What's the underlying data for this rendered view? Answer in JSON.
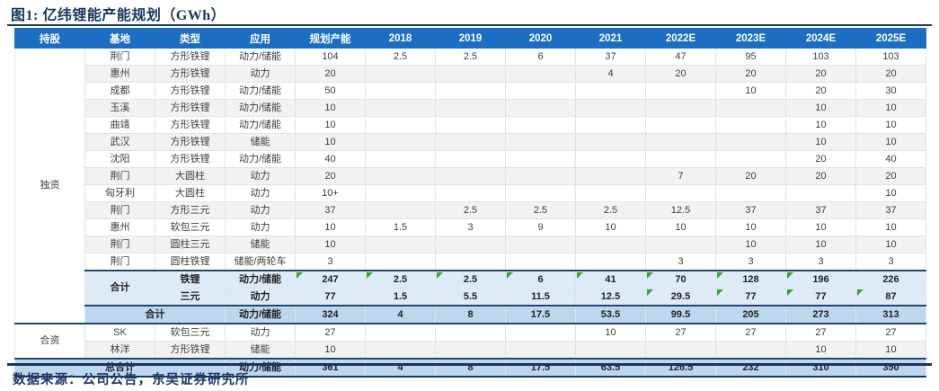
{
  "title": "图1: 亿纬锂能产能规划（GWh）",
  "footer": "数据来源：公司公告，东吴证券研究所",
  "colors": {
    "header_bg": "#1B6EC2",
    "header_text": "#FFFFFF",
    "subtotal_bg": "#DDEBF7",
    "total_bg": "#BDD7EE",
    "stripe_bg": "#F2F2F2",
    "flag_green": "#3AA234",
    "rule_navy": "#17375E",
    "title_navy": "#17375E"
  },
  "table": {
    "columns": [
      "持股",
      "基地",
      "类型",
      "应用",
      "规划产能",
      "2018",
      "2019",
      "2020",
      "2021",
      "2022E",
      "2023E",
      "2024E",
      "2025E"
    ],
    "groups": [
      {
        "name": "独资",
        "rows": [
          {
            "base": "荆门",
            "type": "方形铁锂",
            "app": "动力/储能",
            "values": [
              "104",
              "2.5",
              "2.5",
              "6",
              "37",
              "47",
              "95",
              "103",
              "103"
            ]
          },
          {
            "base": "惠州",
            "type": "方形铁锂",
            "app": "动力",
            "values": [
              "20",
              "",
              "",
              "",
              "4",
              "20",
              "20",
              "20",
              "20"
            ]
          },
          {
            "base": "成都",
            "type": "方形铁锂",
            "app": "动力/储能",
            "values": [
              "50",
              "",
              "",
              "",
              "",
              "",
              "10",
              "20",
              "30"
            ]
          },
          {
            "base": "玉溪",
            "type": "方形铁锂",
            "app": "动力/储能",
            "values": [
              "10",
              "",
              "",
              "",
              "",
              "",
              "",
              "10",
              "10"
            ]
          },
          {
            "base": "曲靖",
            "type": "方形铁锂",
            "app": "动力/储能",
            "values": [
              "10",
              "",
              "",
              "",
              "",
              "",
              "",
              "10",
              "10"
            ]
          },
          {
            "base": "武汉",
            "type": "方形铁锂",
            "app": "储能",
            "values": [
              "10",
              "",
              "",
              "",
              "",
              "",
              "",
              "10",
              "10"
            ]
          },
          {
            "base": "沈阳",
            "type": "方形铁锂",
            "app": "动力/储能",
            "values": [
              "40",
              "",
              "",
              "",
              "",
              "",
              "",
              "20",
              "40"
            ]
          },
          {
            "base": "荆门",
            "type": "大圆柱",
            "app": "动力",
            "values": [
              "20",
              "",
              "",
              "",
              "",
              "7",
              "20",
              "20",
              "20"
            ]
          },
          {
            "base": "匈牙利",
            "type": "大圆柱",
            "app": "动力",
            "values": [
              "10+",
              "",
              "",
              "",
              "",
              "",
              "",
              "",
              "10"
            ]
          },
          {
            "base": "荆门",
            "type": "方形三元",
            "app": "动力",
            "values": [
              "37",
              "",
              "2.5",
              "2.5",
              "2.5",
              "12.5",
              "37",
              "37",
              "37"
            ]
          },
          {
            "base": "惠州",
            "type": "软包三元",
            "app": "动力",
            "values": [
              "10",
              "1.5",
              "3",
              "9",
              "10",
              "10",
              "10",
              "10",
              "10"
            ]
          },
          {
            "base": "荆门",
            "type": "圆柱三元",
            "app": "储能",
            "values": [
              "10",
              "",
              "",
              "",
              "",
              "",
              "10",
              "10",
              "10"
            ]
          },
          {
            "base": "荆门",
            "type": "圆柱铁锂",
            "app": "储能/两轮车",
            "values": [
              "3",
              "",
              "",
              "",
              "",
              "3",
              "3",
              "3",
              "3"
            ]
          }
        ],
        "subtotal_rows": [
          {
            "label": "合计",
            "type": "铁锂",
            "app": "动力/储能",
            "values": [
              "247",
              "2.5",
              "2.5",
              "6",
              "41",
              "70",
              "128",
              "196",
              "226"
            ],
            "flags": [
              1,
              1,
              1,
              1,
              1,
              1,
              1,
              1,
              0
            ]
          },
          {
            "type": "三元",
            "app": "动力",
            "values": [
              "77",
              "1.5",
              "5.5",
              "11.5",
              "12.5",
              "29.5",
              "77",
              "77",
              "87"
            ],
            "flags": [
              0,
              0,
              0,
              0,
              0,
              1,
              1,
              1,
              1
            ]
          }
        ],
        "total_row": {
          "label": "合计",
          "app": "动力/储能",
          "values": [
            "324",
            "4",
            "8",
            "17.5",
            "53.5",
            "99.5",
            "205",
            "273",
            "313"
          ]
        }
      },
      {
        "name": "合资",
        "rows": [
          {
            "base": "SK",
            "type": "软包三元",
            "app": "动力",
            "values": [
              "27",
              "",
              "",
              "",
              "10",
              "27",
              "27",
              "27",
              "27"
            ]
          },
          {
            "base": "林洋",
            "type": "方形铁锂",
            "app": "储能",
            "values": [
              "10",
              "",
              "",
              "",
              "",
              "",
              "",
              "10",
              "10"
            ]
          }
        ]
      }
    ],
    "grand_total_row": {
      "label": "总合计",
      "app": "动力/储能",
      "values": [
        "361",
        "4",
        "8",
        "17.5",
        "63.5",
        "126.5",
        "232",
        "310",
        "350"
      ]
    }
  }
}
